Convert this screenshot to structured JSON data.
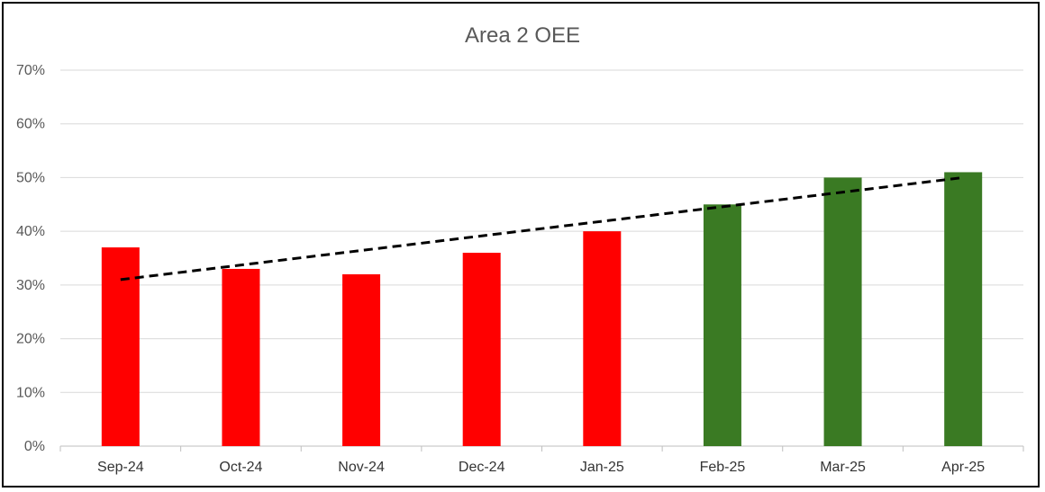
{
  "chart_data": {
    "type": "bar",
    "title": "Area 2 OEE",
    "categories": [
      "Sep-24",
      "Oct-24",
      "Nov-24",
      "Dec-24",
      "Jan-25",
      "Feb-25",
      "Mar-25",
      "Apr-25"
    ],
    "values": [
      0.37,
      0.33,
      0.32,
      0.36,
      0.4,
      0.45,
      0.5,
      0.51
    ],
    "bar_colors": [
      "#ff0000",
      "#ff0000",
      "#ff0000",
      "#ff0000",
      "#ff0000",
      "#3a7a23",
      "#3a7a23",
      "#3a7a23"
    ],
    "ylim": [
      0,
      0.7
    ],
    "y_ticks": [
      0,
      0.1,
      0.2,
      0.3,
      0.4,
      0.5,
      0.6,
      0.7
    ],
    "y_tick_labels": [
      "0%",
      "10%",
      "20%",
      "30%",
      "40%",
      "50%",
      "60%",
      "70%"
    ],
    "xlabel": "",
    "ylabel": "",
    "grid": true,
    "legend": false,
    "trendline": {
      "type": "linear",
      "style": "dashed",
      "color": "#000000",
      "start": 0.31,
      "end": 0.5
    }
  }
}
